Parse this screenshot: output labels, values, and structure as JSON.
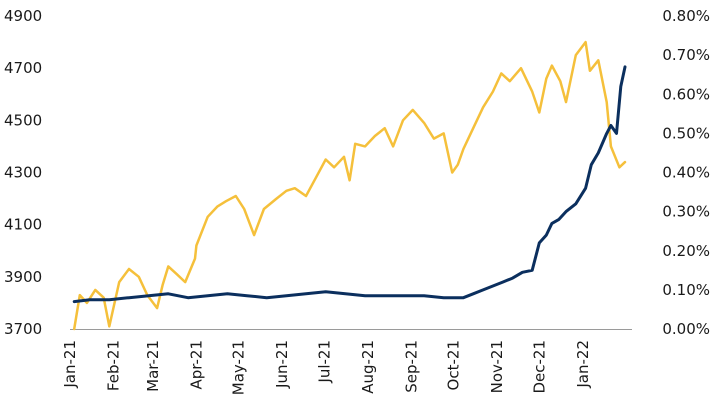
{
  "chart_data": {
    "type": "line",
    "title": "",
    "xlabel": "",
    "ylabel_left": "",
    "ylabel_right": "",
    "grid": false,
    "legend": "none",
    "x_tick_labels": [
      "Jan-21",
      "Feb-21",
      "Mar-21",
      "Apr-21",
      "May-21",
      "Jun-21",
      "Jul-21",
      "Aug-21",
      "Sep-21",
      "Oct-21",
      "Nov-21",
      "Dec-21",
      "Jan-22"
    ],
    "y_left": {
      "lim": [
        3700,
        4900
      ],
      "ticks": [
        3700,
        3900,
        4100,
        4300,
        4500,
        4700,
        4900
      ],
      "tick_labels": [
        "3700",
        "3900",
        "4100",
        "4300",
        "4500",
        "4700",
        "4900"
      ]
    },
    "y_right": {
      "lim": [
        0.0,
        0.8
      ],
      "ticks": [
        0.0,
        0.1,
        0.2,
        0.3,
        0.4,
        0.5,
        0.6,
        0.7,
        0.8
      ],
      "tick_labels": [
        "0.00%",
        "0.10%",
        "0.20%",
        "0.30%",
        "0.40%",
        "0.50%",
        "0.60%",
        "0.70%",
        "0.80%"
      ]
    },
    "series": [
      {
        "axis": "left",
        "color": "#F5C03B",
        "x": [
          "2021-01-04",
          "2021-01-08",
          "2021-01-13",
          "2021-01-19",
          "2021-01-25",
          "2021-01-29",
          "2021-02-05",
          "2021-02-12",
          "2021-02-19",
          "2021-02-25",
          "2021-03-04",
          "2021-03-08",
          "2021-03-12",
          "2021-03-18",
          "2021-03-24",
          "2021-03-31",
          "2021-04-01",
          "2021-04-09",
          "2021-04-16",
          "2021-04-22",
          "2021-04-29",
          "2021-05-05",
          "2021-05-12",
          "2021-05-19",
          "2021-05-28",
          "2021-06-04",
          "2021-06-10",
          "2021-06-18",
          "2021-06-25",
          "2021-07-02",
          "2021-07-08",
          "2021-07-15",
          "2021-07-19",
          "2021-07-23",
          "2021-07-30",
          "2021-08-06",
          "2021-08-13",
          "2021-08-19",
          "2021-08-26",
          "2021-09-02",
          "2021-09-10",
          "2021-09-17",
          "2021-09-24",
          "2021-09-30",
          "2021-10-04",
          "2021-10-08",
          "2021-10-15",
          "2021-10-22",
          "2021-10-29",
          "2021-11-04",
          "2021-11-10",
          "2021-11-18",
          "2021-11-26",
          "2021-12-01",
          "2021-12-06",
          "2021-12-10",
          "2021-12-16",
          "2021-12-20",
          "2021-12-27",
          "2022-01-03",
          "2022-01-06",
          "2022-01-12",
          "2022-01-18",
          "2022-01-21",
          "2022-01-27",
          "2022-01-31"
        ],
        "y": [
          3700,
          3830,
          3800,
          3850,
          3820,
          3710,
          3880,
          3930,
          3900,
          3830,
          3780,
          3870,
          3940,
          3910,
          3880,
          3970,
          4020,
          4130,
          4170,
          4190,
          4210,
          4160,
          4060,
          4160,
          4200,
          4230,
          4240,
          4210,
          4280,
          4350,
          4320,
          4360,
          4270,
          4410,
          4400,
          4440,
          4470,
          4400,
          4500,
          4540,
          4490,
          4430,
          4450,
          4300,
          4330,
          4390,
          4470,
          4550,
          4610,
          4680,
          4650,
          4700,
          4610,
          4530,
          4660,
          4710,
          4650,
          4570,
          4750,
          4800,
          4690,
          4730,
          4570,
          4400,
          4320,
          4340
        ]
      },
      {
        "axis": "right",
        "color": "#0B2F5E",
        "x": [
          "2021-01-04",
          "2021-01-15",
          "2021-01-29",
          "2021-02-12",
          "2021-02-26",
          "2021-03-12",
          "2021-03-26",
          "2021-04-09",
          "2021-04-23",
          "2021-05-07",
          "2021-05-21",
          "2021-06-04",
          "2021-06-18",
          "2021-07-02",
          "2021-07-16",
          "2021-07-30",
          "2021-08-13",
          "2021-08-27",
          "2021-09-10",
          "2021-09-24",
          "2021-10-01",
          "2021-10-08",
          "2021-10-15",
          "2021-10-22",
          "2021-10-29",
          "2021-11-05",
          "2021-11-12",
          "2021-11-19",
          "2021-11-26",
          "2021-12-01",
          "2021-12-06",
          "2021-12-10",
          "2021-12-15",
          "2021-12-20",
          "2021-12-27",
          "2022-01-03",
          "2022-01-07",
          "2022-01-12",
          "2022-01-18",
          "2022-01-21",
          "2022-01-25",
          "2022-01-28",
          "2022-01-31"
        ],
        "y": [
          0.07,
          0.075,
          0.075,
          0.08,
          0.085,
          0.09,
          0.08,
          0.085,
          0.09,
          0.085,
          0.08,
          0.085,
          0.09,
          0.095,
          0.09,
          0.085,
          0.085,
          0.085,
          0.085,
          0.08,
          0.08,
          0.08,
          0.09,
          0.1,
          0.11,
          0.12,
          0.13,
          0.145,
          0.15,
          0.22,
          0.24,
          0.27,
          0.28,
          0.3,
          0.32,
          0.36,
          0.42,
          0.45,
          0.5,
          0.52,
          0.5,
          0.62,
          0.67
        ]
      }
    ]
  }
}
